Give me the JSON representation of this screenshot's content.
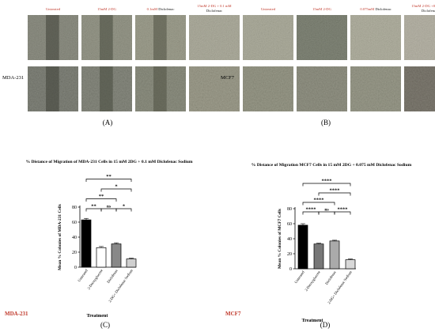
{
  "panel_a": {
    "cell_line": "MDA-231",
    "panel_label": "(A)",
    "column_headers": [
      [
        {
          "t": "Untreated",
          "c": "red"
        }
      ],
      [
        {
          "t": "15mM 2-DG",
          "c": "red"
        }
      ],
      [
        {
          "t": "0.1mM ",
          "c": "red"
        },
        {
          "t": "Diclofenac",
          "c": "black"
        }
      ],
      [
        {
          "t": "15mM 2-DG + 0.1 mM",
          "c": "red"
        },
        {
          "t": "Diclofenac",
          "c": "black"
        }
      ]
    ]
  },
  "panel_b": {
    "cell_line": "MCF7",
    "panel_label": "(B)",
    "column_headers": [
      [
        {
          "t": "Untreated",
          "c": "red"
        }
      ],
      [
        {
          "t": "15mM 2-DG",
          "c": "red"
        }
      ],
      [
        {
          "t": "0.075mM ",
          "c": "red"
        },
        {
          "t": "Diclofenac",
          "c": "black"
        }
      ],
      [
        {
          "t": "15mM 2-DG +0.075mM",
          "c": "red"
        },
        {
          "t": "Diclofenac",
          "c": "black"
        }
      ]
    ]
  },
  "panel_c": {
    "panel_label": "(C)",
    "cell_line": "MDA-231"
  },
  "panel_d": {
    "panel_label": "(D)",
    "cell_line": "MCF7"
  },
  "chart_data": [
    {
      "type": "bar",
      "title": "% Distance of Migration of MDA-231 Cells in 15 mM 2DG + 0.1 mM Diclofenac Sodium",
      "xlabel": "Treatment",
      "ylabel": "Mean % Colonies of MDA-231 Cells",
      "categories": [
        "Untreated",
        "2-Deoxyglucose",
        "Diclofenac",
        "2-DG+ Diclofenac Sodium"
      ],
      "values": [
        63,
        26,
        31,
        11
      ],
      "errors": [
        2,
        1.5,
        1.5,
        1
      ],
      "bar_colors": [
        "#000000",
        "#ffffff",
        "#888888",
        "#cfcfcf"
      ],
      "ylim": [
        0,
        80
      ],
      "yticks": [
        0,
        20,
        40,
        60,
        80
      ],
      "brackets": [
        {
          "from": 0,
          "to": 1,
          "label": "**",
          "level": 1
        },
        {
          "from": 1,
          "to": 2,
          "label": "ns",
          "level": 1
        },
        {
          "from": 2,
          "to": 3,
          "label": "*",
          "level": 1
        },
        {
          "from": 0,
          "to": 2,
          "label": "**",
          "level": 2
        },
        {
          "from": 1,
          "to": 3,
          "label": "*",
          "level": 3
        },
        {
          "from": 0,
          "to": 3,
          "label": "**",
          "level": 4
        }
      ],
      "grid": false
    },
    {
      "type": "bar",
      "title": "% Distance of Migration MCF7 Cells in 15 mM 2DG + 0.075 mM Diclofenac Sodium",
      "xlabel": "Treatment",
      "ylabel": "Mean % Colonies of MCF7 Cells",
      "categories": [
        "Untreated",
        "2-Deoxyglucose",
        "Diclofenac",
        "2-DG+ Diclofenac Sodium"
      ],
      "values": [
        58,
        33,
        37,
        12
      ],
      "errors": [
        2,
        1,
        1,
        1
      ],
      "bar_colors": [
        "#000000",
        "#777777",
        "#aaaaaa",
        "#d8d8d8"
      ],
      "ylim": [
        0,
        80
      ],
      "yticks": [
        0,
        20,
        40,
        60,
        80
      ],
      "brackets": [
        {
          "from": 0,
          "to": 1,
          "label": "****",
          "level": 1
        },
        {
          "from": 1,
          "to": 2,
          "label": "ns",
          "level": 1
        },
        {
          "from": 2,
          "to": 3,
          "label": "****",
          "level": 1
        },
        {
          "from": 0,
          "to": 2,
          "label": "****",
          "level": 2
        },
        {
          "from": 1,
          "to": 3,
          "label": "****",
          "level": 3
        },
        {
          "from": 0,
          "to": 3,
          "label": "****",
          "level": 4
        }
      ],
      "grid": false
    }
  ]
}
